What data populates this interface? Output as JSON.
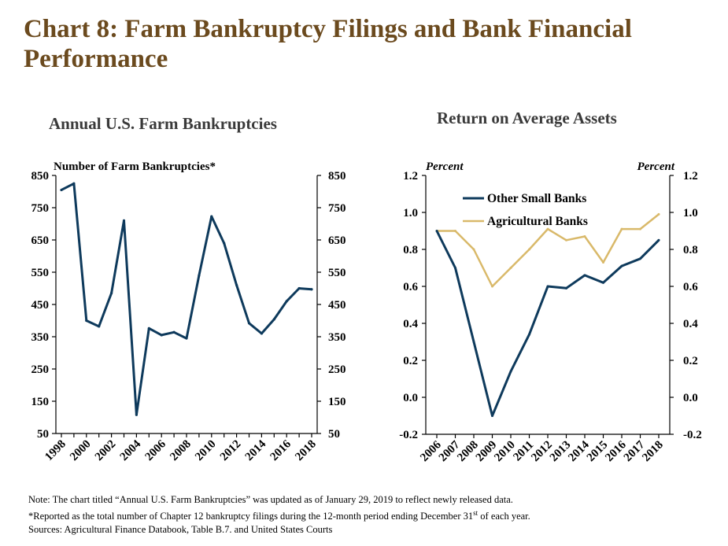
{
  "title": "Chart 8: Farm Bankruptcy Filings and Bank Financial Performance",
  "colors": {
    "title": "#6b4a1e",
    "navy": "#0e3a5c",
    "gold": "#d9b96a"
  },
  "chart_data": [
    {
      "type": "line",
      "title": "Annual U.S. Farm Bankruptcies",
      "ylabel": "Number of Farm Bankruptcies*",
      "ylim": [
        50,
        850
      ],
      "yticks": [
        850,
        750,
        650,
        550,
        450,
        350,
        250,
        150,
        50
      ],
      "xtick_labels": [
        "1998",
        "2000",
        "2002",
        "2004",
        "2006",
        "2008",
        "2010",
        "2012",
        "2014",
        "2016",
        "2018"
      ],
      "x": [
        1998,
        1999,
        2000,
        2001,
        2002,
        2003,
        2004,
        2005,
        2006,
        2007,
        2008,
        2009,
        2010,
        2011,
        2012,
        2013,
        2014,
        2015,
        2016,
        2017,
        2018
      ],
      "series": [
        {
          "values": [
            805,
            825,
            400,
            382,
            485,
            710,
            108,
            376,
            355,
            364,
            345,
            540,
            723,
            640,
            510,
            392,
            360,
            404,
            460,
            500,
            497
          ]
        }
      ]
    },
    {
      "type": "line",
      "title": "Return on Average Assets",
      "ylabel_left": "Percent",
      "ylabel_right": "Percent",
      "ylim": [
        -0.2,
        1.2
      ],
      "yticks": [
        "1.2",
        "1.0",
        "0.8",
        "0.6",
        "0.4",
        "0.2",
        "0.0",
        "-0.2"
      ],
      "categories": [
        "2006",
        "2007",
        "2008",
        "2009",
        "2010",
        "2011",
        "2012",
        "2013",
        "2014",
        "2015",
        "2016",
        "2017",
        "2018"
      ],
      "legend": "top-left",
      "series": [
        {
          "name": "Other Small Banks",
          "values": [
            0.9,
            0.7,
            0.3,
            -0.1,
            0.14,
            0.34,
            0.6,
            0.59,
            0.66,
            0.62,
            0.71,
            0.75,
            0.85
          ]
        },
        {
          "name": "Agricultural Banks",
          "values": [
            0.9,
            0.9,
            0.8,
            0.6,
            0.7,
            0.8,
            0.91,
            0.85,
            0.87,
            0.73,
            0.91,
            0.91,
            0.99
          ]
        }
      ]
    }
  ],
  "footnotes": {
    "note": "Note: The chart titled “Annual U.S. Farm Bankruptcies” was updated as of January 29, 2019 to reflect newly released data.",
    "reported_pre": "*Reported as the total number of Chapter 12 bankruptcy filings during the 12-month period ending December 31",
    "reported_sup": "st",
    "reported_post": " of each year.",
    "sources": "Sources: Agricultural Finance Databook, Table B.7. and United States Courts"
  }
}
